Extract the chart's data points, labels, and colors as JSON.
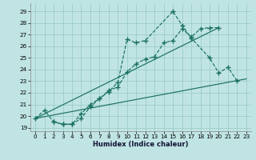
{
  "xlabel": "Humidex (Indice chaleur)",
  "bg_color": "#c0e4e4",
  "grid_color": "#96c8c8",
  "line_color": "#1a7060",
  "xlim": [
    -0.5,
    23.5
  ],
  "ylim": [
    18.7,
    29.7
  ],
  "xticks": [
    0,
    1,
    2,
    3,
    4,
    5,
    6,
    7,
    8,
    9,
    10,
    11,
    12,
    13,
    14,
    15,
    16,
    17,
    18,
    19,
    20,
    21,
    22,
    23
  ],
  "yticks": [
    19,
    20,
    21,
    22,
    23,
    24,
    25,
    26,
    27,
    28,
    29
  ],
  "series1_x": [
    0,
    1,
    2,
    3,
    4,
    5,
    6,
    7,
    8,
    9,
    10,
    11,
    12,
    13,
    14,
    15,
    16,
    17,
    18,
    19,
    20
  ],
  "series1_y": [
    19.8,
    20.5,
    19.5,
    19.3,
    19.3,
    19.8,
    20.8,
    21.5,
    22.2,
    22.5,
    23.8,
    24.5,
    24.9,
    25.1,
    26.3,
    26.5,
    27.5,
    26.8,
    27.5,
    27.6,
    27.6
  ],
  "series2_x": [
    2,
    3,
    4,
    5,
    6,
    7,
    8,
    9,
    10,
    11,
    12,
    15,
    16,
    17,
    19,
    20,
    21,
    22
  ],
  "series2_y": [
    19.5,
    19.3,
    19.3,
    20.2,
    21.0,
    21.5,
    22.1,
    22.9,
    26.6,
    26.3,
    26.5,
    29.0,
    27.8,
    26.7,
    25.0,
    23.7,
    24.2,
    23.0
  ],
  "line3_x": [
    0,
    23
  ],
  "line3_y": [
    19.8,
    23.2
  ],
  "line4_x": [
    0,
    20
  ],
  "line4_y": [
    19.8,
    27.6
  ]
}
